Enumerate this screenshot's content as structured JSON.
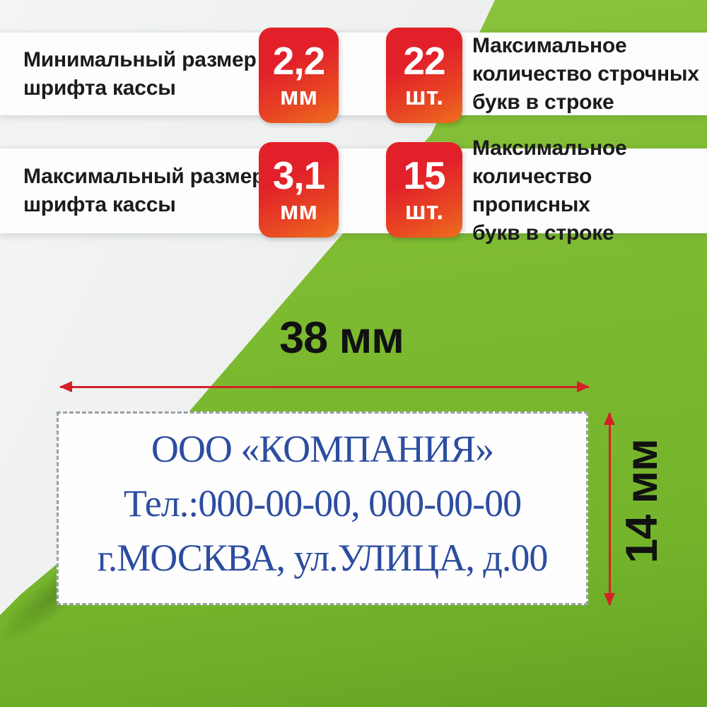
{
  "specs": [
    {
      "label_line1": "Минимальный размер",
      "label_line2": "шрифта кассы",
      "value": "2,2",
      "unit": "мм"
    },
    {
      "label_line1": "Максимальное",
      "label_line2": "количество строчных",
      "label_line3": "букв в строке",
      "value": "22",
      "unit": "шт."
    },
    {
      "label_line1": "Максимальный размер",
      "label_line2": "шрифта кассы",
      "value": "3,1",
      "unit": "мм"
    },
    {
      "label_line1": "Максимальное",
      "label_line2": "количество прописных",
      "label_line3": "букв в строке",
      "value": "15",
      "unit": "шт."
    }
  ],
  "dimensions": {
    "width_label": "38 мм",
    "height_label": "14 мм"
  },
  "stamp": {
    "line1": "ООО «КОМПАНИЯ»",
    "line2": "Тел.:000-00-00, 000-00-00",
    "line3": "г.МОСКВА, ул.УЛИЦА, д.00"
  },
  "icons": {
    "width_arrow": "double-headed-horizontal-arrow",
    "height_arrow": "double-headed-vertical-arrow"
  },
  "colors": {
    "badge_red_top": "#e2202a",
    "badge_orange_bottom": "#ee6f1e",
    "arrow_red": "#d42127",
    "stamp_blue": "#2c4da0",
    "green": "#7ab82e",
    "text_black": "#1b1b1d"
  }
}
